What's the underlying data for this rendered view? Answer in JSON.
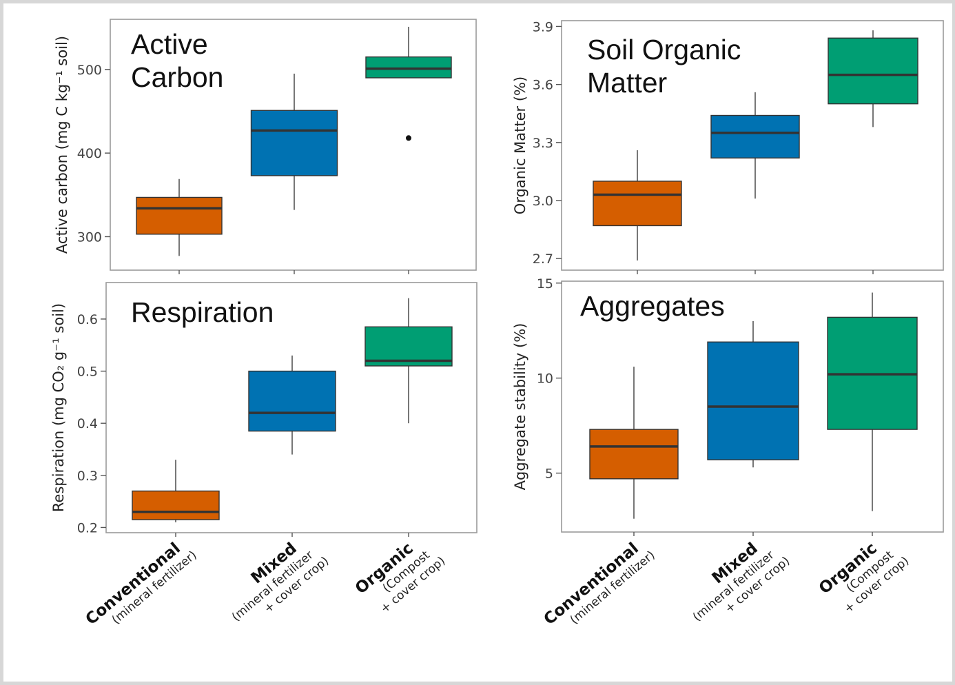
{
  "colors": {
    "conventional": "#d55e00",
    "mixed": "#0072b2",
    "organic": "#009e73",
    "median": "#333333",
    "whisker": "#555555",
    "panel_border": "#9a9a9a",
    "frame": "#d7d7d7"
  },
  "categories": [
    {
      "main": "Conventional",
      "sub": [
        "(mineral fertilizer)"
      ]
    },
    {
      "main": "Mixed",
      "sub": [
        "(mineral fertilizer",
        "+ cover crop)"
      ]
    },
    {
      "main": "Organic",
      "sub": [
        "(Compost",
        "+ cover crop)"
      ]
    }
  ],
  "chart_data": [
    {
      "type": "box",
      "title": [
        "Active",
        "Carbon"
      ],
      "ylabel": "Active carbon (mg C kg⁻¹ soil)",
      "yticks": [
        "300",
        "400",
        "500"
      ],
      "ylim": [
        260,
        560
      ],
      "series": [
        {
          "name": "Conventional",
          "min": 277,
          "q1": 303,
          "median": 334,
          "q3": 347,
          "max": 369,
          "outliers": []
        },
        {
          "name": "Mixed",
          "min": 332,
          "q1": 373,
          "median": 427,
          "q3": 451,
          "max": 495,
          "outliers": []
        },
        {
          "name": "Organic",
          "min": 490,
          "q1": 490,
          "median": 501,
          "q3": 515,
          "max": 551,
          "outliers": [
            418
          ]
        }
      ]
    },
    {
      "type": "box",
      "title": [
        "Soil Organic",
        "Matter"
      ],
      "ylabel": "Organic Matter (%)",
      "yticks": [
        "2.7",
        "3.0",
        "3.3",
        "3.6",
        "3.9"
      ],
      "ylim": [
        2.64,
        3.93
      ],
      "series": [
        {
          "name": "Conventional",
          "min": 2.69,
          "q1": 2.87,
          "median": 3.03,
          "q3": 3.1,
          "max": 3.26,
          "outliers": []
        },
        {
          "name": "Mixed",
          "min": 3.01,
          "q1": 3.22,
          "median": 3.35,
          "q3": 3.44,
          "max": 3.56,
          "outliers": []
        },
        {
          "name": "Organic",
          "min": 3.38,
          "q1": 3.5,
          "median": 3.65,
          "q3": 3.84,
          "max": 3.88,
          "outliers": []
        }
      ]
    },
    {
      "type": "box",
      "title": [
        "Respiration"
      ],
      "ylabel": "Respiration (mg CO₂ g⁻¹ soil)",
      "yticks": [
        "0.2",
        "0.3",
        "0.4",
        "0.5",
        "0.6"
      ],
      "ylim": [
        0.19,
        0.67
      ],
      "series": [
        {
          "name": "Conventional",
          "min": 0.21,
          "q1": 0.215,
          "median": 0.23,
          "q3": 0.27,
          "max": 0.33,
          "outliers": []
        },
        {
          "name": "Mixed",
          "min": 0.34,
          "q1": 0.385,
          "median": 0.42,
          "q3": 0.5,
          "max": 0.53,
          "outliers": []
        },
        {
          "name": "Organic",
          "min": 0.4,
          "q1": 0.51,
          "median": 0.52,
          "q3": 0.585,
          "max": 0.64,
          "outliers": []
        }
      ]
    },
    {
      "type": "box",
      "title": [
        "Aggregates"
      ],
      "ylabel": "Aggregate stability (%)",
      "yticks": [
        "5",
        "10",
        "15"
      ],
      "ylim": [
        1.9,
        15.1
      ],
      "series": [
        {
          "name": "Conventional",
          "min": 2.6,
          "q1": 4.7,
          "median": 6.4,
          "q3": 7.3,
          "max": 10.6,
          "outliers": []
        },
        {
          "name": "Mixed",
          "min": 5.3,
          "q1": 5.7,
          "median": 8.5,
          "q3": 11.9,
          "max": 13.0,
          "outliers": []
        },
        {
          "name": "Organic",
          "min": 3.0,
          "q1": 7.3,
          "median": 10.2,
          "q3": 13.2,
          "max": 14.5,
          "outliers": []
        }
      ]
    }
  ]
}
